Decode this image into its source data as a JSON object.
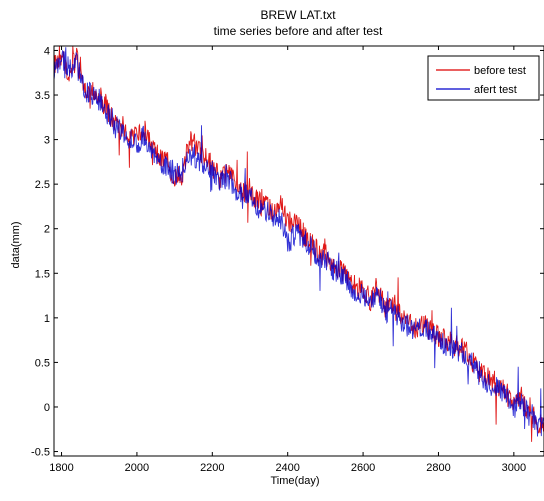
{
  "chart_data": {
    "type": "line",
    "title": "BREW LAT.txt",
    "subtitle": "time series before and after test",
    "xlabel": "Time(day)",
    "ylabel": "data(mm)",
    "xlim": [
      1780,
      3080
    ],
    "ylim": [
      -0.55,
      4.05
    ],
    "xticks": [
      1800,
      2000,
      2200,
      2400,
      2600,
      2800,
      3000
    ],
    "yticks": [
      -0.5,
      0,
      0.5,
      1,
      1.5,
      2,
      2.5,
      3,
      3.5,
      4
    ],
    "grid": false,
    "legend_position": "top-right",
    "series": [
      {
        "name": "before test",
        "color": "#dd0000",
        "x": [
          1780,
          1800,
          1820,
          1840,
          1860,
          1880,
          1900,
          1920,
          1940,
          1960,
          1980,
          2000,
          2020,
          2040,
          2060,
          2080,
          2100,
          2120,
          2140,
          2160,
          2180,
          2200,
          2220,
          2240,
          2260,
          2280,
          2300,
          2320,
          2340,
          2360,
          2380,
          2400,
          2420,
          2440,
          2460,
          2480,
          2500,
          2520,
          2540,
          2560,
          2580,
          2600,
          2620,
          2640,
          2660,
          2680,
          2700,
          2720,
          2740,
          2760,
          2780,
          2800,
          2820,
          2840,
          2860,
          2880,
          2900,
          2920,
          2940,
          2960,
          2980,
          3000,
          3020,
          3040,
          3060,
          3080
        ],
        "y": [
          3.85,
          3.95,
          3.75,
          3.9,
          3.6,
          3.55,
          3.5,
          3.35,
          3.2,
          3.15,
          3.05,
          3.0,
          3.1,
          2.9,
          2.8,
          2.75,
          2.55,
          2.6,
          3.0,
          2.9,
          2.8,
          2.7,
          2.55,
          2.65,
          2.5,
          2.4,
          2.45,
          2.3,
          2.25,
          2.2,
          2.3,
          2.05,
          2.1,
          1.95,
          1.85,
          1.75,
          1.7,
          1.6,
          1.55,
          1.45,
          1.35,
          1.3,
          1.2,
          1.3,
          1.1,
          1.15,
          1.0,
          0.95,
          0.9,
          0.95,
          0.85,
          0.8,
          0.75,
          0.7,
          0.65,
          0.6,
          0.45,
          0.35,
          0.3,
          0.25,
          0.15,
          0.05,
          0.1,
          -0.05,
          -0.15,
          -0.2
        ]
      },
      {
        "name": "afert test",
        "color": "#0000cc",
        "x": [
          1780,
          1800,
          1820,
          1840,
          1860,
          1880,
          1900,
          1920,
          1940,
          1960,
          1980,
          2000,
          2020,
          2040,
          2060,
          2080,
          2100,
          2120,
          2140,
          2160,
          2180,
          2200,
          2220,
          2240,
          2260,
          2280,
          2300,
          2320,
          2340,
          2360,
          2380,
          2400,
          2420,
          2440,
          2460,
          2480,
          2500,
          2520,
          2540,
          2560,
          2580,
          2600,
          2620,
          2640,
          2660,
          2680,
          2700,
          2720,
          2740,
          2760,
          2780,
          2800,
          2820,
          2840,
          2860,
          2880,
          2900,
          2920,
          2940,
          2960,
          2980,
          3000,
          3020,
          3040,
          3060,
          3080
        ],
        "y": [
          3.8,
          3.9,
          3.8,
          3.85,
          3.55,
          3.5,
          3.45,
          3.3,
          3.15,
          3.1,
          3.0,
          2.95,
          3.05,
          2.85,
          2.75,
          2.7,
          2.6,
          2.65,
          2.85,
          2.8,
          2.7,
          2.65,
          2.5,
          2.6,
          2.45,
          2.35,
          2.4,
          2.25,
          2.2,
          2.15,
          2.1,
          1.85,
          1.95,
          1.9,
          1.8,
          1.7,
          1.65,
          1.55,
          1.5,
          1.4,
          1.3,
          1.25,
          1.2,
          1.25,
          1.05,
          1.1,
          0.95,
          0.9,
          0.85,
          0.9,
          0.8,
          0.75,
          0.7,
          0.65,
          0.6,
          0.55,
          0.4,
          0.3,
          0.25,
          0.2,
          0.1,
          0.0,
          0.05,
          -0.1,
          -0.2,
          -0.25
        ]
      }
    ]
  }
}
